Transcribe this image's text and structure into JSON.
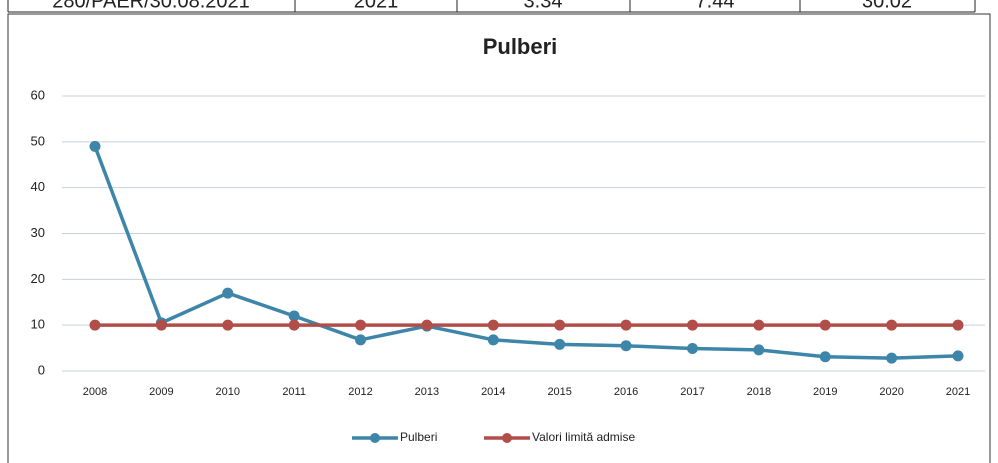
{
  "table": {
    "row": [
      "280/PAER/30.08.2021",
      "2021",
      "3.34",
      "7.44",
      "30.02"
    ]
  },
  "chart_data": {
    "type": "line",
    "title": "Pulberi",
    "categories": [
      "2008",
      "2009",
      "2010",
      "2011",
      "2012",
      "2013",
      "2014",
      "2015",
      "2016",
      "2017",
      "2018",
      "2019",
      "2020",
      "2021"
    ],
    "series": [
      {
        "name": "Pulberi",
        "color": "#3d85a9",
        "values": [
          49,
          10.5,
          17,
          12,
          6.8,
          9.8,
          6.8,
          5.8,
          5.5,
          4.9,
          4.6,
          3.1,
          2.8,
          3.3
        ]
      },
      {
        "name": "Valori limită admise",
        "color": "#b24e4a",
        "values": [
          10,
          10,
          10,
          10,
          10,
          10,
          10,
          10,
          10,
          10,
          10,
          10,
          10,
          10
        ]
      }
    ],
    "ylim": [
      0,
      60
    ],
    "yticks": [
      0,
      10,
      20,
      30,
      40,
      50,
      60
    ],
    "grid": true,
    "legend": "bottom"
  }
}
